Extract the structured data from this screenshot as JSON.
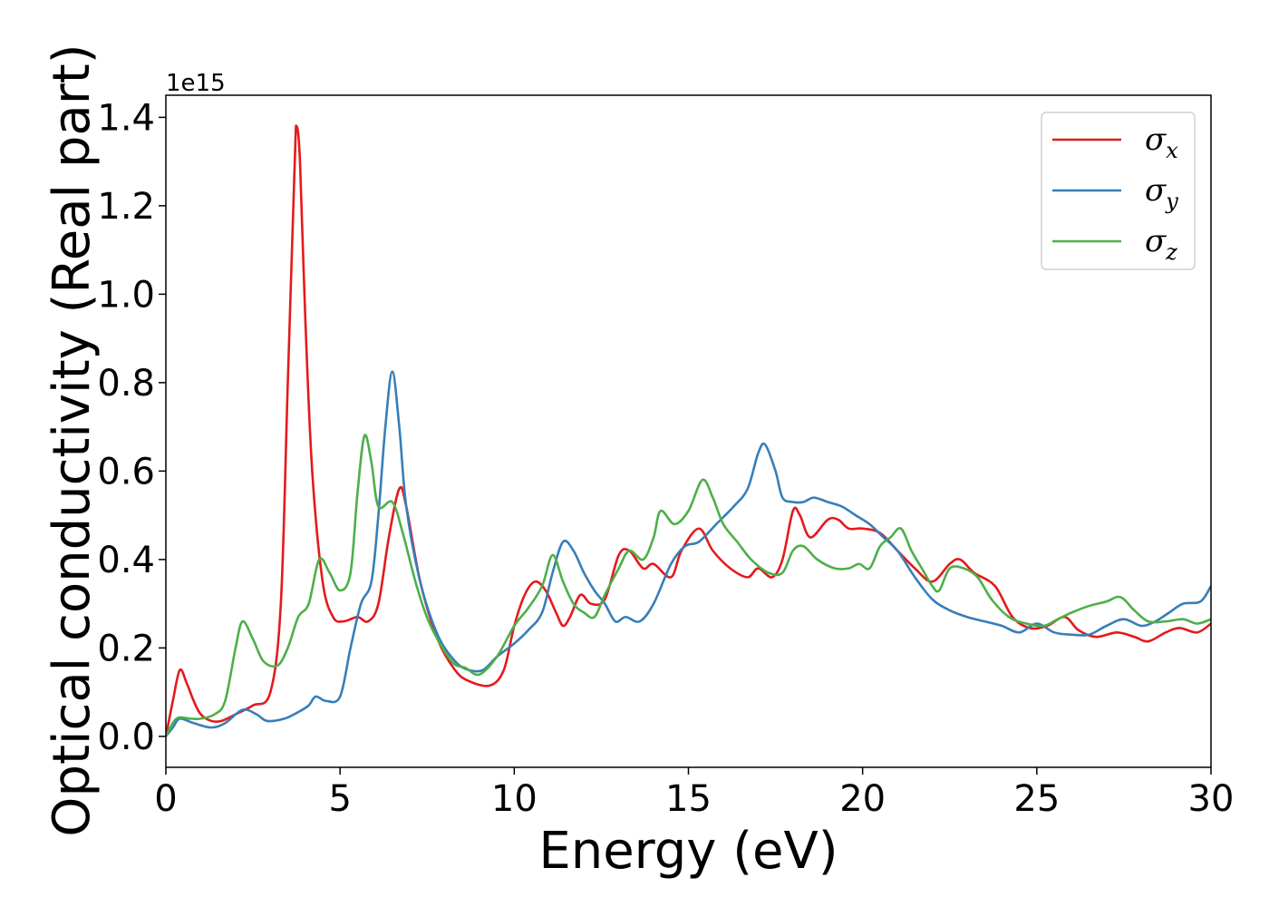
{
  "chart_data": {
    "type": "line",
    "xlabel": "Energy (eV)",
    "ylabel": "Optical conductivity (Real part)",
    "y_offset_label": "1e15",
    "xlim": [
      0,
      30
    ],
    "ylim": [
      -0.07,
      1.45
    ],
    "x_ticks": [
      "0",
      "5",
      "10",
      "15",
      "20",
      "25",
      "30"
    ],
    "y_ticks": [
      "0.0",
      "0.2",
      "0.4",
      "0.6",
      "0.8",
      "1.0",
      "1.2",
      "1.4"
    ],
    "grid": false,
    "legend_position": "top-right",
    "series": [
      {
        "name": "σx",
        "symbol": "σ",
        "subscript": "x",
        "color": "#e41a1c",
        "points": [
          [
            0,
            0
          ],
          [
            0.2,
            0.08
          ],
          [
            0.4,
            0.15
          ],
          [
            0.6,
            0.12
          ],
          [
            0.8,
            0.08
          ],
          [
            1.0,
            0.05
          ],
          [
            1.3,
            0.035
          ],
          [
            1.6,
            0.035
          ],
          [
            2,
            0.05
          ],
          [
            2.5,
            0.07
          ],
          [
            3,
            0.1
          ],
          [
            3.3,
            0.3
          ],
          [
            3.5,
            0.8
          ],
          [
            3.7,
            1.3
          ],
          [
            3.75,
            1.38
          ],
          [
            3.85,
            1.3
          ],
          [
            4.0,
            0.95
          ],
          [
            4.2,
            0.6
          ],
          [
            4.5,
            0.35
          ],
          [
            4.8,
            0.27
          ],
          [
            5.1,
            0.26
          ],
          [
            5.5,
            0.27
          ],
          [
            5.8,
            0.26
          ],
          [
            6.1,
            0.3
          ],
          [
            6.4,
            0.45
          ],
          [
            6.7,
            0.56
          ],
          [
            6.9,
            0.52
          ],
          [
            7.3,
            0.35
          ],
          [
            7.8,
            0.22
          ],
          [
            8.3,
            0.15
          ],
          [
            8.7,
            0.125
          ],
          [
            9.3,
            0.115
          ],
          [
            9.7,
            0.15
          ],
          [
            10.0,
            0.25
          ],
          [
            10.3,
            0.32
          ],
          [
            10.6,
            0.35
          ],
          [
            10.9,
            0.33
          ],
          [
            11.2,
            0.28
          ],
          [
            11.4,
            0.25
          ],
          [
            11.6,
            0.27
          ],
          [
            11.9,
            0.32
          ],
          [
            12.2,
            0.3
          ],
          [
            12.6,
            0.31
          ],
          [
            13.0,
            0.41
          ],
          [
            13.3,
            0.42
          ],
          [
            13.7,
            0.38
          ],
          [
            14.0,
            0.39
          ],
          [
            14.5,
            0.36
          ],
          [
            14.8,
            0.42
          ],
          [
            15.3,
            0.47
          ],
          [
            15.7,
            0.42
          ],
          [
            16.2,
            0.38
          ],
          [
            16.7,
            0.36
          ],
          [
            17.0,
            0.38
          ],
          [
            17.4,
            0.36
          ],
          [
            17.7,
            0.4
          ],
          [
            18.0,
            0.51
          ],
          [
            18.2,
            0.5
          ],
          [
            18.5,
            0.45
          ],
          [
            19.0,
            0.49
          ],
          [
            19.3,
            0.49
          ],
          [
            19.6,
            0.47
          ],
          [
            20.0,
            0.47
          ],
          [
            20.5,
            0.46
          ],
          [
            21.0,
            0.42
          ],
          [
            21.5,
            0.38
          ],
          [
            22.0,
            0.35
          ],
          [
            22.5,
            0.39
          ],
          [
            22.8,
            0.4
          ],
          [
            23.2,
            0.37
          ],
          [
            23.8,
            0.34
          ],
          [
            24.3,
            0.27
          ],
          [
            24.8,
            0.245
          ],
          [
            25.3,
            0.25
          ],
          [
            25.8,
            0.27
          ],
          [
            26.2,
            0.24
          ],
          [
            26.7,
            0.225
          ],
          [
            27.3,
            0.235
          ],
          [
            27.8,
            0.225
          ],
          [
            28.2,
            0.215
          ],
          [
            28.7,
            0.235
          ],
          [
            29.1,
            0.245
          ],
          [
            29.6,
            0.235
          ],
          [
            30,
            0.255
          ]
        ]
      },
      {
        "name": "σy",
        "symbol": "σ",
        "subscript": "y",
        "color": "#377eb8",
        "points": [
          [
            0,
            0
          ],
          [
            0.2,
            0.02
          ],
          [
            0.4,
            0.04
          ],
          [
            0.8,
            0.03
          ],
          [
            1.3,
            0.02
          ],
          [
            1.7,
            0.03
          ],
          [
            2.2,
            0.06
          ],
          [
            2.6,
            0.05
          ],
          [
            2.9,
            0.035
          ],
          [
            3.4,
            0.04
          ],
          [
            3.8,
            0.055
          ],
          [
            4.1,
            0.07
          ],
          [
            4.3,
            0.09
          ],
          [
            4.6,
            0.08
          ],
          [
            5.0,
            0.09
          ],
          [
            5.3,
            0.2
          ],
          [
            5.6,
            0.3
          ],
          [
            5.9,
            0.35
          ],
          [
            6.1,
            0.5
          ],
          [
            6.3,
            0.7
          ],
          [
            6.5,
            0.825
          ],
          [
            6.7,
            0.7
          ],
          [
            6.9,
            0.52
          ],
          [
            7.3,
            0.35
          ],
          [
            7.8,
            0.23
          ],
          [
            8.3,
            0.17
          ],
          [
            8.7,
            0.15
          ],
          [
            9.1,
            0.15
          ],
          [
            9.5,
            0.18
          ],
          [
            10.0,
            0.21
          ],
          [
            10.4,
            0.24
          ],
          [
            10.8,
            0.28
          ],
          [
            11.1,
            0.37
          ],
          [
            11.4,
            0.44
          ],
          [
            11.7,
            0.42
          ],
          [
            12.0,
            0.37
          ],
          [
            12.3,
            0.33
          ],
          [
            12.6,
            0.3
          ],
          [
            12.9,
            0.26
          ],
          [
            13.2,
            0.27
          ],
          [
            13.6,
            0.26
          ],
          [
            14.0,
            0.3
          ],
          [
            14.5,
            0.39
          ],
          [
            14.9,
            0.43
          ],
          [
            15.3,
            0.44
          ],
          [
            15.8,
            0.48
          ],
          [
            16.3,
            0.52
          ],
          [
            16.7,
            0.56
          ],
          [
            17.0,
            0.64
          ],
          [
            17.2,
            0.66
          ],
          [
            17.5,
            0.6
          ],
          [
            17.7,
            0.54
          ],
          [
            18.0,
            0.53
          ],
          [
            18.3,
            0.53
          ],
          [
            18.6,
            0.54
          ],
          [
            19.0,
            0.53
          ],
          [
            19.4,
            0.52
          ],
          [
            19.8,
            0.5
          ],
          [
            20.2,
            0.48
          ],
          [
            20.6,
            0.45
          ],
          [
            21.0,
            0.42
          ],
          [
            21.5,
            0.36
          ],
          [
            22.0,
            0.31
          ],
          [
            22.5,
            0.285
          ],
          [
            23.0,
            0.27
          ],
          [
            23.5,
            0.26
          ],
          [
            24.0,
            0.25
          ],
          [
            24.5,
            0.235
          ],
          [
            25.0,
            0.255
          ],
          [
            25.5,
            0.235
          ],
          [
            26.0,
            0.23
          ],
          [
            26.5,
            0.23
          ],
          [
            27.0,
            0.25
          ],
          [
            27.5,
            0.265
          ],
          [
            28.0,
            0.25
          ],
          [
            28.4,
            0.26
          ],
          [
            28.8,
            0.28
          ],
          [
            29.2,
            0.3
          ],
          [
            29.7,
            0.305
          ],
          [
            30,
            0.34
          ]
        ]
      },
      {
        "name": "σz",
        "symbol": "σ",
        "subscript": "z",
        "color": "#4daf4a",
        "points": [
          [
            0,
            0
          ],
          [
            0.3,
            0.04
          ],
          [
            0.7,
            0.04
          ],
          [
            1.0,
            0.04
          ],
          [
            1.4,
            0.05
          ],
          [
            1.7,
            0.08
          ],
          [
            2.0,
            0.2
          ],
          [
            2.2,
            0.26
          ],
          [
            2.5,
            0.22
          ],
          [
            2.8,
            0.17
          ],
          [
            3.2,
            0.16
          ],
          [
            3.5,
            0.2
          ],
          [
            3.8,
            0.27
          ],
          [
            4.1,
            0.3
          ],
          [
            4.4,
            0.4
          ],
          [
            4.7,
            0.37
          ],
          [
            5.0,
            0.33
          ],
          [
            5.3,
            0.37
          ],
          [
            5.5,
            0.55
          ],
          [
            5.7,
            0.68
          ],
          [
            5.9,
            0.62
          ],
          [
            6.1,
            0.52
          ],
          [
            6.5,
            0.53
          ],
          [
            6.8,
            0.46
          ],
          [
            7.2,
            0.34
          ],
          [
            7.6,
            0.25
          ],
          [
            8.2,
            0.17
          ],
          [
            8.6,
            0.155
          ],
          [
            9.0,
            0.14
          ],
          [
            9.5,
            0.18
          ],
          [
            10.0,
            0.25
          ],
          [
            10.4,
            0.29
          ],
          [
            10.8,
            0.34
          ],
          [
            11.1,
            0.41
          ],
          [
            11.4,
            0.35
          ],
          [
            11.7,
            0.3
          ],
          [
            12.0,
            0.28
          ],
          [
            12.3,
            0.27
          ],
          [
            12.6,
            0.32
          ],
          [
            13.0,
            0.38
          ],
          [
            13.3,
            0.42
          ],
          [
            13.7,
            0.4
          ],
          [
            14.0,
            0.45
          ],
          [
            14.2,
            0.51
          ],
          [
            14.6,
            0.48
          ],
          [
            15.0,
            0.51
          ],
          [
            15.4,
            0.58
          ],
          [
            15.7,
            0.54
          ],
          [
            16.0,
            0.48
          ],
          [
            16.4,
            0.44
          ],
          [
            16.8,
            0.4
          ],
          [
            17.3,
            0.37
          ],
          [
            17.7,
            0.37
          ],
          [
            18.0,
            0.42
          ],
          [
            18.3,
            0.43
          ],
          [
            18.7,
            0.4
          ],
          [
            19.2,
            0.38
          ],
          [
            19.6,
            0.38
          ],
          [
            19.9,
            0.39
          ],
          [
            20.2,
            0.38
          ],
          [
            20.5,
            0.43
          ],
          [
            20.8,
            0.45
          ],
          [
            21.1,
            0.47
          ],
          [
            21.4,
            0.42
          ],
          [
            21.7,
            0.38
          ],
          [
            22.0,
            0.34
          ],
          [
            22.2,
            0.33
          ],
          [
            22.5,
            0.38
          ],
          [
            22.9,
            0.38
          ],
          [
            23.3,
            0.36
          ],
          [
            23.7,
            0.31
          ],
          [
            24.2,
            0.27
          ],
          [
            24.7,
            0.255
          ],
          [
            25.2,
            0.25
          ],
          [
            25.6,
            0.265
          ],
          [
            26.0,
            0.28
          ],
          [
            26.5,
            0.295
          ],
          [
            27.0,
            0.305
          ],
          [
            27.4,
            0.315
          ],
          [
            27.8,
            0.285
          ],
          [
            28.2,
            0.26
          ],
          [
            28.7,
            0.26
          ],
          [
            29.2,
            0.265
          ],
          [
            29.6,
            0.255
          ],
          [
            30,
            0.265
          ]
        ]
      }
    ]
  }
}
